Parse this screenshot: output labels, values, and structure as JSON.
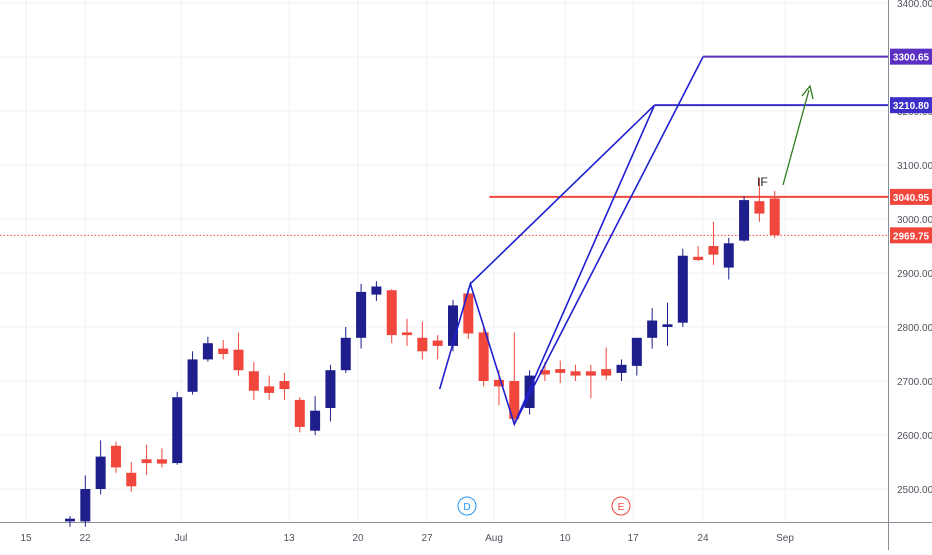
{
  "chart_data": {
    "type": "candlestick",
    "title": "",
    "xlabel": "",
    "ylabel": "",
    "ylim": [
      2440,
      3400
    ],
    "grid": true,
    "x_ticks": [
      "15",
      "22",
      "Jul",
      "13",
      "20",
      "27",
      "Aug",
      "10",
      "17",
      "24",
      "Sep"
    ],
    "y_ticks": [
      "2500.00",
      "2600.00",
      "2700.00",
      "2800.00",
      "2900.00",
      "3000.00",
      "3100.00",
      "3200.00",
      "3300.00",
      "3400.00"
    ],
    "price_labels": [
      "3300.65",
      "3210.80",
      "3040.95",
      "2969.75"
    ],
    "price_values": [
      3300.65,
      3210.8,
      3040.95,
      2969.75
    ],
    "annotation_text": "IF",
    "event_markers": [
      "D",
      "E"
    ],
    "colors": {
      "up": "#1e1e8c",
      "down": "#f0463c",
      "pattern": "#2020d0",
      "target_high": "#5a2fc2",
      "target_low": "#3b2fc8",
      "resistance": "#f0463c",
      "arrow": "#2e7d1f",
      "grid": "#eef0f3"
    },
    "candles": [
      {
        "date": "Jun 23",
        "o": 2440,
        "h": 2450,
        "l": 2430,
        "c": 2445
      },
      {
        "date": "Jun 24",
        "o": 2440,
        "h": 2525,
        "l": 2430,
        "c": 2500
      },
      {
        "date": "Jun 25",
        "o": 2500,
        "h": 2590,
        "l": 2490,
        "c": 2560
      },
      {
        "date": "Jun 26",
        "o": 2580,
        "h": 2588,
        "l": 2530,
        "c": 2540
      },
      {
        "date": "Jun 29",
        "o": 2530,
        "h": 2550,
        "l": 2495,
        "c": 2505
      },
      {
        "date": "Jun 30",
        "o": 2555,
        "h": 2582,
        "l": 2526,
        "c": 2548
      },
      {
        "date": "Jul 1",
        "o": 2555,
        "h": 2575,
        "l": 2540,
        "c": 2547
      },
      {
        "date": "Jul 2",
        "o": 2548,
        "h": 2680,
        "l": 2545,
        "c": 2670
      },
      {
        "date": "Jul 3",
        "o": 2680,
        "h": 2755,
        "l": 2675,
        "c": 2740
      },
      {
        "date": "Jul 6",
        "o": 2740,
        "h": 2782,
        "l": 2736,
        "c": 2770
      },
      {
        "date": "Jul 7",
        "o": 2760,
        "h": 2776,
        "l": 2740,
        "c": 2750
      },
      {
        "date": "Jul 8",
        "o": 2758,
        "h": 2790,
        "l": 2710,
        "c": 2720
      },
      {
        "date": "Jul 9",
        "o": 2718,
        "h": 2735,
        "l": 2665,
        "c": 2682
      },
      {
        "date": "Jul 10",
        "o": 2690,
        "h": 2710,
        "l": 2665,
        "c": 2678
      },
      {
        "date": "Jul 13",
        "o": 2700,
        "h": 2715,
        "l": 2665,
        "c": 2685
      },
      {
        "date": "Jul 14",
        "o": 2665,
        "h": 2670,
        "l": 2605,
        "c": 2615
      },
      {
        "date": "Jul 15",
        "o": 2608,
        "h": 2672,
        "l": 2600,
        "c": 2645
      },
      {
        "date": "Jul 16",
        "o": 2650,
        "h": 2730,
        "l": 2625,
        "c": 2720
      },
      {
        "date": "Jul 17",
        "o": 2720,
        "h": 2800,
        "l": 2715,
        "c": 2780
      },
      {
        "date": "Jul 20",
        "o": 2780,
        "h": 2880,
        "l": 2760,
        "c": 2865
      },
      {
        "date": "Jul 21",
        "o": 2860,
        "h": 2885,
        "l": 2848,
        "c": 2875
      },
      {
        "date": "Jul 22",
        "o": 2868,
        "h": 2870,
        "l": 2770,
        "c": 2785
      },
      {
        "date": "Jul 23",
        "o": 2790,
        "h": 2815,
        "l": 2765,
        "c": 2785
      },
      {
        "date": "Jul 24",
        "o": 2780,
        "h": 2810,
        "l": 2740,
        "c": 2755
      },
      {
        "date": "Jul 27",
        "o": 2775,
        "h": 2785,
        "l": 2740,
        "c": 2765
      },
      {
        "date": "Jul 28",
        "o": 2765,
        "h": 2850,
        "l": 2755,
        "c": 2840
      },
      {
        "date": "Jul 29",
        "o": 2862,
        "h": 2872,
        "l": 2778,
        "c": 2788
      },
      {
        "date": "Jul 30",
        "o": 2790,
        "h": 2800,
        "l": 2690,
        "c": 2700
      },
      {
        "date": "Jul 31",
        "o": 2702,
        "h": 2720,
        "l": 2655,
        "c": 2690
      },
      {
        "date": "Aug 3",
        "o": 2700,
        "h": 2790,
        "l": 2620,
        "c": 2630
      },
      {
        "date": "Aug 4",
        "o": 2650,
        "h": 2720,
        "l": 2638,
        "c": 2710
      },
      {
        "date": "Aug 5",
        "o": 2720,
        "h": 2735,
        "l": 2700,
        "c": 2712
      },
      {
        "date": "Aug 6",
        "o": 2722,
        "h": 2738,
        "l": 2696,
        "c": 2715
      },
      {
        "date": "Aug 7",
        "o": 2718,
        "h": 2730,
        "l": 2700,
        "c": 2710
      },
      {
        "date": "Aug 10",
        "o": 2718,
        "h": 2730,
        "l": 2668,
        "c": 2710
      },
      {
        "date": "Aug 11",
        "o": 2722,
        "h": 2762,
        "l": 2702,
        "c": 2710
      },
      {
        "date": "Aug 12",
        "o": 2715,
        "h": 2740,
        "l": 2700,
        "c": 2730
      },
      {
        "date": "Aug 13",
        "o": 2728,
        "h": 2775,
        "l": 2710,
        "c": 2780
      },
      {
        "date": "Aug 14",
        "o": 2780,
        "h": 2835,
        "l": 2760,
        "c": 2812
      },
      {
        "date": "Aug 17",
        "o": 2800,
        "h": 2845,
        "l": 2765,
        "c": 2805
      },
      {
        "date": "Aug 18",
        "o": 2808,
        "h": 2945,
        "l": 2800,
        "c": 2932
      },
      {
        "date": "Aug 19",
        "o": 2930,
        "h": 2950,
        "l": 2922,
        "c": 2924
      },
      {
        "date": "Aug 20",
        "o": 2950,
        "h": 2995,
        "l": 2915,
        "c": 2934
      },
      {
        "date": "Aug 21",
        "o": 2910,
        "h": 2965,
        "l": 2888,
        "c": 2955
      },
      {
        "date": "Aug 24",
        "o": 2960,
        "h": 3042,
        "l": 2958,
        "c": 3035
      },
      {
        "date": "Aug 25",
        "o": 3033,
        "h": 3076,
        "l": 2995,
        "c": 3010
      },
      {
        "date": "Aug 26",
        "o": 3038,
        "h": 3052,
        "l": 2965,
        "c": 2970
      }
    ]
  }
}
